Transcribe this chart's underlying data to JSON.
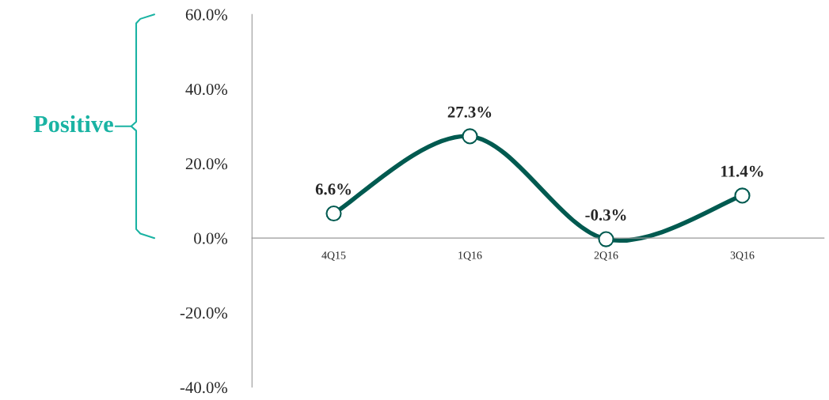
{
  "chart_data": {
    "type": "line",
    "categories": [
      "4Q15",
      "1Q16",
      "2Q16",
      "3Q16"
    ],
    "series": [
      {
        "color": "#005a50",
        "values": [
          6.6,
          27.3,
          -0.3,
          11.4
        ],
        "value_labels": [
          "6.6%",
          "27.3%",
          "-0.3%",
          "11.4%"
        ]
      }
    ],
    "ylim": [
      -40,
      60
    ],
    "yticks": [
      {
        "value": -40,
        "label": "-40.0%"
      },
      {
        "value": -20,
        "label": "-20.0%"
      },
      {
        "value": 0,
        "label": "0.0%"
      },
      {
        "value": 20,
        "label": "20.0%"
      },
      {
        "value": 40,
        "label": "40.0%"
      },
      {
        "value": 60,
        "label": "60.0%"
      }
    ],
    "marker": "circle",
    "line_style": "solid",
    "grid": false,
    "legend": false,
    "annotations": [
      "Positive"
    ]
  }
}
